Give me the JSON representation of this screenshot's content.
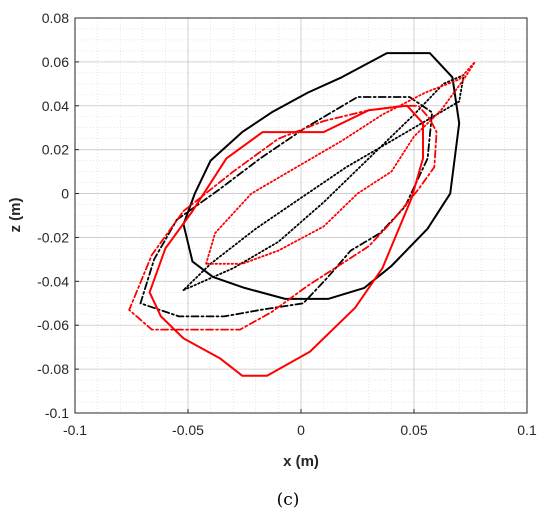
{
  "chart_data": {
    "type": "line",
    "xlabel": "x (m)",
    "ylabel": "z (m)",
    "caption": "(c)",
    "xlim": [
      -0.1,
      0.1
    ],
    "ylim": [
      -0.1,
      0.08
    ],
    "x_ticks": [
      -0.1,
      -0.05,
      0,
      0.05,
      0.1
    ],
    "x_tick_labels": [
      "-0.1",
      "-0.05",
      "0",
      "0.05",
      "0.1"
    ],
    "y_ticks": [
      -0.1,
      -0.08,
      -0.06,
      -0.04,
      -0.02,
      0,
      0.02,
      0.04,
      0.06,
      0.08
    ],
    "y_tick_labels": [
      "-0.1",
      "-0.08",
      "-0.06",
      "-0.04",
      "-0.02",
      "0",
      "0.02",
      "0.04",
      "0.06",
      "0.08"
    ],
    "grid": true,
    "minor_grid": true,
    "series": [
      {
        "color": "#000000",
        "style": "solid",
        "points": [
          [
            -0.04,
            0.015
          ],
          [
            -0.026,
            0.028
          ],
          [
            -0.013,
            0.037
          ],
          [
            0.003,
            0.046
          ],
          [
            0.018,
            0.053
          ],
          [
            0.038,
            0.064
          ],
          [
            0.057,
            0.064
          ],
          [
            0.067,
            0.053
          ],
          [
            0.07,
            0.032
          ],
          [
            0.066,
            0.0
          ],
          [
            0.056,
            -0.016
          ],
          [
            0.04,
            -0.033
          ],
          [
            0.028,
            -0.043
          ],
          [
            0.012,
            -0.048
          ],
          [
            -0.007,
            -0.048
          ],
          [
            -0.025,
            -0.043
          ],
          [
            -0.039,
            -0.038
          ],
          [
            -0.048,
            -0.031
          ],
          [
            -0.052,
            -0.014
          ],
          [
            -0.047,
            0.0
          ],
          [
            -0.04,
            0.015
          ]
        ]
      },
      {
        "color": "#000000",
        "style": "dashdot",
        "points": [
          [
            -0.055,
            -0.012
          ],
          [
            -0.036,
            0.002
          ],
          [
            -0.018,
            0.016
          ],
          [
            0.002,
            0.03
          ],
          [
            0.025,
            0.044
          ],
          [
            0.048,
            0.044
          ],
          [
            0.058,
            0.037
          ],
          [
            0.056,
            0.016
          ],
          [
            0.046,
            -0.006
          ],
          [
            0.035,
            -0.018
          ],
          [
            0.022,
            -0.026
          ],
          [
            0.012,
            -0.038
          ],
          [
            0.001,
            -0.05
          ],
          [
            -0.018,
            -0.053
          ],
          [
            -0.034,
            -0.056
          ],
          [
            -0.054,
            -0.056
          ],
          [
            -0.071,
            -0.05
          ],
          [
            -0.065,
            -0.03
          ],
          [
            -0.055,
            -0.012
          ]
        ]
      },
      {
        "color": "#000000",
        "style": "dotted",
        "points": [
          [
            -0.052,
            -0.044
          ],
          [
            -0.03,
            -0.034
          ],
          [
            -0.01,
            -0.022
          ],
          [
            0.01,
            -0.004
          ],
          [
            0.03,
            0.016
          ],
          [
            0.05,
            0.036
          ],
          [
            0.063,
            0.05
          ],
          [
            0.072,
            0.054
          ],
          [
            0.07,
            0.042
          ],
          [
            0.06,
            0.036
          ],
          [
            0.04,
            0.024
          ],
          [
            0.02,
            0.012
          ],
          [
            0.0,
            -0.002
          ],
          [
            -0.02,
            -0.016
          ],
          [
            -0.04,
            -0.032
          ],
          [
            -0.052,
            -0.044
          ]
        ]
      },
      {
        "color": "#ff0000",
        "style": "solid",
        "points": [
          [
            -0.048,
            -0.008
          ],
          [
            -0.033,
            0.016
          ],
          [
            -0.017,
            0.028
          ],
          [
            0.01,
            0.028
          ],
          [
            0.03,
            0.038
          ],
          [
            0.047,
            0.04
          ],
          [
            0.054,
            0.032
          ],
          [
            0.054,
            0.016
          ],
          [
            0.049,
            -0.002
          ],
          [
            0.036,
            -0.034
          ],
          [
            0.024,
            -0.052
          ],
          [
            0.004,
            -0.072
          ],
          [
            -0.015,
            -0.083
          ],
          [
            -0.026,
            -0.083
          ],
          [
            -0.036,
            -0.075
          ],
          [
            -0.052,
            -0.066
          ],
          [
            -0.062,
            -0.056
          ],
          [
            -0.067,
            -0.045
          ],
          [
            -0.06,
            -0.025
          ],
          [
            -0.048,
            -0.008
          ]
        ]
      },
      {
        "color": "#ff0000",
        "style": "dashdot",
        "points": [
          [
            -0.052,
            -0.008
          ],
          [
            -0.03,
            0.01
          ],
          [
            -0.01,
            0.025
          ],
          [
            0.01,
            0.033
          ],
          [
            0.03,
            0.038
          ],
          [
            0.045,
            0.04
          ],
          [
            0.052,
            0.04
          ],
          [
            0.057,
            0.034
          ],
          [
            0.06,
            0.028
          ],
          [
            0.059,
            0.012
          ],
          [
            0.052,
            0.002
          ],
          [
            0.04,
            -0.013
          ],
          [
            0.03,
            -0.024
          ],
          [
            0.018,
            -0.032
          ],
          [
            0.003,
            -0.042
          ],
          [
            -0.013,
            -0.054
          ],
          [
            -0.027,
            -0.062
          ],
          [
            -0.045,
            -0.062
          ],
          [
            -0.066,
            -0.062
          ],
          [
            -0.076,
            -0.053
          ],
          [
            -0.066,
            -0.028
          ],
          [
            -0.052,
            -0.008
          ]
        ]
      },
      {
        "color": "#ff0000",
        "style": "dotted",
        "points": [
          [
            -0.042,
            -0.032
          ],
          [
            -0.038,
            -0.018
          ],
          [
            -0.022,
            0.0
          ],
          [
            -0.002,
            0.012
          ],
          [
            0.018,
            0.024
          ],
          [
            0.036,
            0.036
          ],
          [
            0.055,
            0.046
          ],
          [
            0.07,
            0.052
          ],
          [
            0.077,
            0.06
          ],
          [
            0.072,
            0.052
          ],
          [
            0.062,
            0.038
          ],
          [
            0.05,
            0.026
          ],
          [
            0.04,
            0.01
          ],
          [
            0.025,
            0.0
          ],
          [
            0.01,
            -0.015
          ],
          [
            -0.01,
            -0.026
          ],
          [
            -0.026,
            -0.032
          ],
          [
            -0.042,
            -0.032
          ]
        ]
      }
    ]
  }
}
